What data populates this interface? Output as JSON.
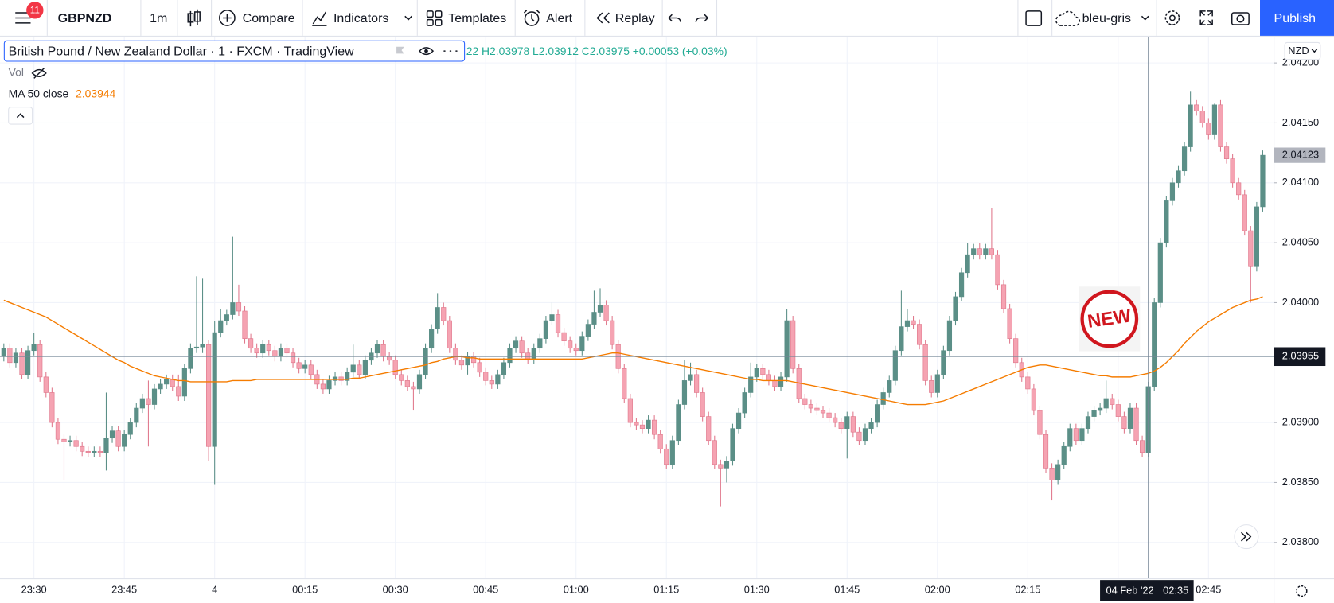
{
  "toolbar": {
    "notifications": "11",
    "symbol": "GBPNZD",
    "interval": "1m",
    "compare": "Compare",
    "indicators": "Indicators",
    "templates": "Templates",
    "alert": "Alert",
    "replay": "Replay",
    "layout": "bleu-gris",
    "publish": "Publish"
  },
  "legend": {
    "description": "British Pound / New Zealand Dollar · 1 · FXCM · TradingView",
    "ohlc": "22  H2.03978  L2.03912  C2.03975  +0.00053 (+0.03%)",
    "volume": "Vol",
    "ma_label": "MA 50 close",
    "ma_value": 2.03944
  },
  "badge": "NEW",
  "chart_data": {
    "type": "candlestick",
    "currency": "NZD",
    "up_color": "#5b8f87",
    "down_color": "#f5a3b2",
    "down_edge": "#e0788c",
    "ma_color": "#f57c00",
    "grid": true,
    "ylim": [
      2.0377,
      2.04222
    ],
    "yticks": [
      {
        "value": 2.038,
        "label": "2.03800"
      },
      {
        "value": 2.0385,
        "label": "2.03850"
      },
      {
        "value": 2.039,
        "label": "2.03900"
      },
      {
        "value": 2.04,
        "label": "2.04000"
      },
      {
        "value": 2.0405,
        "label": "2.04050"
      },
      {
        "value": 2.041,
        "label": "2.04100"
      },
      {
        "value": 2.0415,
        "label": "2.04150"
      },
      {
        "value": 2.042,
        "label": "2.04200"
      }
    ],
    "xticks": [
      "23:30",
      "23:45",
      "4",
      "00:15",
      "00:30",
      "00:45",
      "01:00",
      "01:15",
      "01:30",
      "01:45",
      "02:00",
      "02:15",
      null,
      "02:45"
    ],
    "last_price": 2.04123,
    "crosshair_price": 2.03955,
    "crosshair_date": "04 Feb '22",
    "crosshair_time": "02:35",
    "open": [
      2.03955,
      2.03962,
      2.0395,
      2.03958,
      2.0394,
      2.0396,
      2.03965,
      2.03938,
      2.03925,
      2.039,
      2.03886,
      2.03884,
      2.03885,
      2.0388,
      2.03876,
      2.03875,
      2.03876,
      2.03875,
      2.03887,
      2.03893,
      2.0388,
      2.0389,
      2.039,
      2.03912,
      2.0392,
      2.03915,
      2.03928,
      2.03932,
      2.03936,
      2.0393,
      2.03922,
      2.03945,
      2.03962,
      2.03963,
      2.03965,
      2.0388,
      2.03975,
      2.03985,
      2.0399,
      2.04,
      2.03993,
      2.0397,
      2.03962,
      2.03958,
      2.03965,
      2.0396,
      2.03955,
      2.03962,
      2.03958,
      2.0395,
      2.03945,
      2.03948,
      2.0394,
      2.03932,
      2.03928,
      2.03935,
      2.03938,
      2.03935,
      2.03942,
      2.03948,
      2.0394,
      2.03952,
      2.03958,
      2.03965,
      2.03955,
      2.03952,
      2.0394,
      2.03935,
      2.0393,
      2.03928,
      2.0394,
      2.03962,
      2.03978,
      2.03996,
      2.03985,
      2.03962,
      2.03952,
      2.03948,
      2.03955,
      2.0395,
      2.03942,
      2.03935,
      2.03932,
      2.0394,
      2.0395,
      2.03962,
      2.03968,
      2.03958,
      2.03953,
      2.03962,
      2.0397,
      2.03985,
      2.0399,
      2.03975,
      2.03968,
      2.03962,
      2.0396,
      2.03972,
      2.03982,
      2.03992,
      2.03998,
      2.03985,
      2.03965,
      2.03945,
      2.0392,
      2.039,
      2.03898,
      2.03895,
      2.03902,
      2.0389,
      2.03878,
      2.03865,
      2.03885,
      2.03915,
      2.03935,
      2.0394,
      2.03925,
      2.03905,
      2.03885,
      2.03865,
      2.03862,
      2.03868,
      2.03895,
      2.03908,
      2.03925,
      2.03938,
      2.03945,
      2.0394,
      2.03935,
      2.0393,
      2.03938,
      2.03985,
      2.03945,
      2.0392,
      2.03915,
      2.03912,
      2.0391,
      2.03908,
      2.03904,
      2.039,
      2.03895,
      2.03905,
      2.03892,
      2.03885,
      2.03895,
      2.039,
      2.03915,
      2.03925,
      2.03935,
      2.0396,
      2.0398,
      2.03985,
      2.03982,
      2.03965,
      2.03935,
      2.03925,
      2.0394,
      2.0396,
      2.03985,
      2.04005,
      2.04025,
      2.0404,
      2.04045,
      2.0404,
      2.04045,
      2.0404,
      2.04015,
      2.03995,
      2.0397,
      2.0395,
      2.03938,
      2.03928,
      2.0391,
      2.0389,
      2.03862,
      2.03852,
      2.03865,
      2.0388,
      2.03895,
      2.03885,
      2.03895,
      2.03905,
      2.0391,
      2.03912,
      2.0392,
      2.03915,
      2.03905,
      2.03895,
      2.03912,
      2.03885,
      2.03875,
      2.0393,
      2.04,
      2.0405,
      2.04085,
      2.041,
      2.0411,
      2.0413,
      2.04165,
      2.0416,
      2.0415,
      2.0414,
      2.04165,
      2.0413,
      2.0412,
      2.041,
      2.0409,
      2.0406,
      2.0403,
      2.0408
    ],
    "high": [
      2.03966,
      2.03966,
      2.03962,
      2.03962,
      2.03964,
      2.03975,
      2.03969,
      2.03942,
      2.03929,
      2.03904,
      2.0389,
      2.03889,
      2.03889,
      2.03884,
      2.0388,
      2.0388,
      2.0388,
      2.03925,
      2.03897,
      2.03897,
      2.03894,
      2.03904,
      2.03916,
      2.03924,
      2.03935,
      2.03932,
      2.03936,
      2.0394,
      2.0394,
      2.0394,
      2.03949,
      2.03966,
      2.04022,
      2.0402,
      2.03969,
      2.03985,
      2.03995,
      2.03994,
      2.04055,
      2.04015,
      2.03997,
      2.03974,
      2.03966,
      2.03969,
      2.03969,
      2.03964,
      2.03966,
      2.03966,
      2.03962,
      2.03954,
      2.03952,
      2.03952,
      2.03944,
      2.03936,
      2.03939,
      2.03942,
      2.03942,
      2.03946,
      2.03965,
      2.03952,
      2.03956,
      2.03962,
      2.03969,
      2.03969,
      2.03959,
      2.03956,
      2.03944,
      2.03939,
      2.03934,
      2.03944,
      2.03966,
      2.03982,
      2.04008,
      2.04,
      2.03989,
      2.03966,
      2.03956,
      2.03959,
      2.03959,
      2.03954,
      2.03946,
      2.03939,
      2.03944,
      2.03954,
      2.03966,
      2.03972,
      2.03972,
      2.03962,
      2.03966,
      2.03974,
      2.03989,
      2.04,
      2.03994,
      2.03979,
      2.03972,
      2.03966,
      2.03976,
      2.03986,
      2.0401,
      2.04012,
      2.04002,
      2.03989,
      2.03969,
      2.03949,
      2.03924,
      2.03904,
      2.03902,
      2.03906,
      2.03906,
      2.03894,
      2.03882,
      2.03889,
      2.03919,
      2.03952,
      2.0395,
      2.03944,
      2.03929,
      2.03909,
      2.03889,
      2.03869,
      2.03872,
      2.03899,
      2.03912,
      2.03929,
      2.0395,
      2.03949,
      2.03949,
      2.03944,
      2.03939,
      2.03942,
      2.03995,
      2.03989,
      2.03949,
      2.03924,
      2.03919,
      2.03916,
      2.03914,
      2.03912,
      2.03908,
      2.03904,
      2.03909,
      2.03909,
      2.03896,
      2.03899,
      2.03904,
      2.03919,
      2.03929,
      2.03939,
      2.03964,
      2.0401,
      2.03995,
      2.03989,
      2.03986,
      2.03969,
      2.03939,
      2.03944,
      2.03964,
      2.03989,
      2.04009,
      2.04029,
      2.0405,
      2.04049,
      2.0405,
      2.04049,
      2.04079,
      2.04044,
      2.04019,
      2.03999,
      2.03974,
      2.03954,
      2.03942,
      2.03932,
      2.03914,
      2.03894,
      2.03866,
      2.03869,
      2.03884,
      2.03899,
      2.03899,
      2.03899,
      2.03909,
      2.03914,
      2.03916,
      2.03935,
      2.03924,
      2.03919,
      2.03909,
      2.03916,
      2.03916,
      2.03889,
      2.03934,
      2.04004,
      2.04054,
      2.04089,
      2.04104,
      2.04114,
      2.04134,
      2.04176,
      2.04169,
      2.04164,
      2.04154,
      2.04166,
      2.04169,
      2.04134,
      2.04124,
      2.04104,
      2.04094,
      2.04064,
      2.04084,
      2.04127
    ],
    "low": [
      2.03951,
      2.03946,
      2.03946,
      2.03936,
      2.03936,
      2.03956,
      2.03934,
      2.03921,
      2.03896,
      2.03882,
      2.03852,
      2.0388,
      2.03876,
      2.03872,
      2.03871,
      2.03871,
      2.03871,
      2.0386,
      2.03883,
      2.03876,
      2.03876,
      2.03886,
      2.03896,
      2.03908,
      2.0388,
      2.03911,
      2.03924,
      2.03928,
      2.03926,
      2.03918,
      2.03918,
      2.03941,
      2.03958,
      2.03958,
      2.03868,
      2.03848,
      2.03971,
      2.03981,
      2.03986,
      2.03989,
      2.03966,
      2.03958,
      2.03954,
      2.03954,
      2.03956,
      2.03951,
      2.03951,
      2.03954,
      2.03946,
      2.03941,
      2.03941,
      2.03936,
      2.03928,
      2.03924,
      2.03924,
      2.03931,
      2.03931,
      2.03931,
      2.03938,
      2.03936,
      2.03936,
      2.03948,
      2.03954,
      2.03951,
      2.03948,
      2.03936,
      2.03931,
      2.03926,
      2.0391,
      2.03924,
      2.03936,
      2.03958,
      2.03974,
      2.03981,
      2.03958,
      2.03948,
      2.03944,
      2.0394,
      2.03946,
      2.03938,
      2.03931,
      2.03928,
      2.03928,
      2.03936,
      2.03946,
      2.03958,
      2.03954,
      2.03949,
      2.03949,
      2.03958,
      2.03966,
      2.03981,
      2.03971,
      2.03964,
      2.03958,
      2.03956,
      2.03956,
      2.03968,
      2.03978,
      2.03988,
      2.03981,
      2.03961,
      2.03941,
      2.03916,
      2.03896,
      2.03894,
      2.03891,
      2.03891,
      2.03886,
      2.03874,
      2.03861,
      2.03861,
      2.03881,
      2.03911,
      2.03931,
      2.03921,
      2.03901,
      2.03881,
      2.03861,
      2.0383,
      2.0385,
      2.03864,
      2.03891,
      2.03904,
      2.03921,
      2.03934,
      2.03936,
      2.03931,
      2.03926,
      2.03926,
      2.03934,
      2.03941,
      2.03916,
      2.03911,
      2.03908,
      2.03906,
      2.03904,
      2.039,
      2.03896,
      2.03891,
      2.0387,
      2.03888,
      2.03881,
      2.03881,
      2.03891,
      2.03896,
      2.03911,
      2.03921,
      2.03931,
      2.03956,
      2.03976,
      2.03978,
      2.03961,
      2.03931,
      2.03921,
      2.03921,
      2.03936,
      2.03956,
      2.03981,
      2.04001,
      2.04021,
      2.04036,
      2.04036,
      2.04036,
      2.04036,
      2.04011,
      2.03991,
      2.03966,
      2.03946,
      2.03934,
      2.03924,
      2.03906,
      2.03886,
      2.03858,
      2.03835,
      2.03848,
      2.03861,
      2.03876,
      2.03881,
      2.03881,
      2.03891,
      2.03901,
      2.03906,
      2.03908,
      2.03911,
      2.03901,
      2.03891,
      2.03891,
      2.03881,
      2.03871,
      2.03871,
      2.03926,
      2.03996,
      2.04046,
      2.04081,
      2.04096,
      2.04106,
      2.04126,
      2.04156,
      2.04146,
      2.04136,
      2.04136,
      2.04126,
      2.04116,
      2.04096,
      2.04086,
      2.04056,
      2.04,
      2.04026,
      2.04076
    ],
    "close": [
      2.03962,
      2.0395,
      2.03958,
      2.0394,
      2.0396,
      2.03965,
      2.03938,
      2.03925,
      2.039,
      2.03886,
      2.03884,
      2.03885,
      2.0388,
      2.03876,
      2.03875,
      2.03876,
      2.03875,
      2.03887,
      2.03893,
      2.0388,
      2.0389,
      2.039,
      2.03912,
      2.0392,
      2.03915,
      2.03928,
      2.03932,
      2.03936,
      2.0393,
      2.03922,
      2.03945,
      2.03962,
      2.03963,
      2.03965,
      2.0388,
      2.03975,
      2.03985,
      2.0399,
      2.04,
      2.03993,
      2.0397,
      2.03962,
      2.03958,
      2.03965,
      2.0396,
      2.03955,
      2.03962,
      2.03958,
      2.0395,
      2.03945,
      2.03948,
      2.0394,
      2.03932,
      2.03928,
      2.03935,
      2.03938,
      2.03935,
      2.03942,
      2.03948,
      2.0394,
      2.03952,
      2.03958,
      2.03965,
      2.03955,
      2.03952,
      2.0394,
      2.03935,
      2.0393,
      2.03928,
      2.0394,
      2.03962,
      2.03978,
      2.03996,
      2.03985,
      2.03962,
      2.03952,
      2.03948,
      2.03955,
      2.0395,
      2.03942,
      2.03935,
      2.03932,
      2.0394,
      2.0395,
      2.03962,
      2.03968,
      2.03958,
      2.03953,
      2.03962,
      2.0397,
      2.03985,
      2.0399,
      2.03975,
      2.03968,
      2.03962,
      2.0396,
      2.03972,
      2.03982,
      2.03992,
      2.03998,
      2.03985,
      2.03965,
      2.03945,
      2.0392,
      2.039,
      2.03898,
      2.03895,
      2.03902,
      2.0389,
      2.03878,
      2.03865,
      2.03885,
      2.03915,
      2.03935,
      2.0394,
      2.03925,
      2.03905,
      2.03885,
      2.03865,
      2.03862,
      2.03868,
      2.03895,
      2.03908,
      2.03925,
      2.03938,
      2.03945,
      2.0394,
      2.03935,
      2.0393,
      2.03938,
      2.03985,
      2.03945,
      2.0392,
      2.03915,
      2.03912,
      2.0391,
      2.03908,
      2.03904,
      2.039,
      2.03895,
      2.03905,
      2.03892,
      2.03885,
      2.03895,
      2.039,
      2.03915,
      2.03925,
      2.03935,
      2.0396,
      2.0398,
      2.03985,
      2.03982,
      2.03965,
      2.03935,
      2.03925,
      2.0394,
      2.0396,
      2.03985,
      2.04005,
      2.04025,
      2.0404,
      2.04045,
      2.0404,
      2.04045,
      2.0404,
      2.04015,
      2.03995,
      2.0397,
      2.0395,
      2.03938,
      2.03928,
      2.0391,
      2.0389,
      2.03862,
      2.03852,
      2.03865,
      2.0388,
      2.03895,
      2.03885,
      2.03895,
      2.03905,
      2.0391,
      2.03912,
      2.0392,
      2.03915,
      2.03905,
      2.03895,
      2.03912,
      2.03885,
      2.03875,
      2.0393,
      2.04,
      2.0405,
      2.04085,
      2.041,
      2.0411,
      2.0413,
      2.04165,
      2.0416,
      2.0415,
      2.0414,
      2.04165,
      2.0413,
      2.0412,
      2.041,
      2.0409,
      2.0406,
      2.0403,
      2.0408,
      2.04123
    ],
    "ma": [
      2.04002,
      2.04,
      2.03998,
      2.03996,
      2.03994,
      2.03992,
      2.0399,
      2.03988,
      2.03985,
      2.03982,
      2.03979,
      2.03976,
      2.03973,
      2.0397,
      2.03967,
      2.03964,
      2.03961,
      2.03958,
      2.03955,
      2.03952,
      2.0395,
      2.03947,
      2.03945,
      2.03943,
      2.03941,
      2.03939,
      2.03938,
      2.03937,
      2.03936,
      2.03935,
      2.03935,
      2.03934,
      2.03934,
      2.03934,
      2.03934,
      2.03934,
      2.03934,
      2.03934,
      2.03935,
      2.03935,
      2.03935,
      2.03935,
      2.03936,
      2.03936,
      2.03936,
      2.03936,
      2.03936,
      2.03936,
      2.03936,
      2.03936,
      2.03936,
      2.03936,
      2.03936,
      2.03936,
      2.03936,
      2.03936,
      2.03936,
      2.03936,
      2.03937,
      2.03937,
      2.03938,
      2.03939,
      2.0394,
      2.03941,
      2.03942,
      2.03943,
      2.03944,
      2.03945,
      2.03946,
      2.03947,
      2.03948,
      2.0395,
      2.03951,
      2.03953,
      2.03954,
      2.03955,
      2.03955,
      2.03954,
      2.03954,
      2.03953,
      2.03953,
      2.03953,
      2.03953,
      2.03953,
      2.03953,
      2.03953,
      2.03953,
      2.03953,
      2.03953,
      2.03953,
      2.03953,
      2.03953,
      2.03953,
      2.03953,
      2.03953,
      2.03953,
      2.03953,
      2.03954,
      2.03955,
      2.03956,
      2.03957,
      2.03958,
      2.03958,
      2.03957,
      2.03956,
      2.03955,
      2.03954,
      2.03953,
      2.03952,
      2.03951,
      2.0395,
      2.03949,
      2.03948,
      2.03947,
      2.03946,
      2.03945,
      2.03944,
      2.03943,
      2.03942,
      2.03941,
      2.0394,
      2.03939,
      2.03938,
      2.03937,
      2.03936,
      2.03936,
      2.03935,
      2.03935,
      2.03935,
      2.03935,
      2.03935,
      2.03934,
      2.03933,
      2.03932,
      2.03931,
      2.0393,
      2.03929,
      2.03928,
      2.03927,
      2.03926,
      2.03925,
      2.03924,
      2.03923,
      2.03922,
      2.03921,
      2.0392,
      2.03919,
      2.03918,
      2.03917,
      2.03916,
      2.03915,
      2.03915,
      2.03915,
      2.03915,
      2.03916,
      2.03917,
      2.03918,
      2.0392,
      2.03922,
      2.03924,
      2.03926,
      2.03928,
      2.0393,
      2.03932,
      2.03934,
      2.03936,
      2.03938,
      2.0394,
      2.03942,
      2.03944,
      2.03946,
      2.03947,
      2.03948,
      2.03948,
      2.03947,
      2.03946,
      2.03945,
      2.03944,
      2.03943,
      2.03942,
      2.03941,
      2.0394,
      2.03939,
      2.03939,
      2.03938,
      2.03938,
      2.03938,
      2.03938,
      2.03939,
      2.0394,
      2.03941,
      2.03943,
      2.03946,
      2.0395,
      2.03955,
      2.0396,
      2.03966,
      2.03971,
      2.03976,
      2.0398,
      2.03984,
      2.03987,
      2.0399,
      2.03993,
      2.03996,
      2.03998,
      2.04,
      2.04002,
      2.04003,
      2.04005
    ]
  }
}
